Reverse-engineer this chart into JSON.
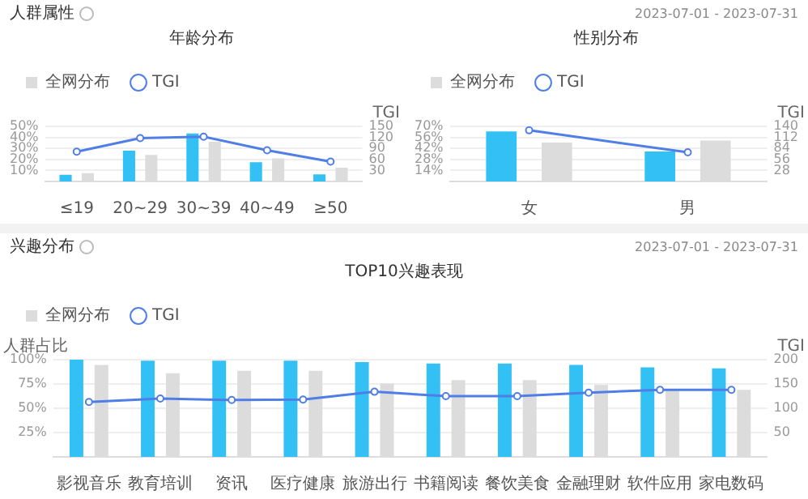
{
  "chart_data": [
    {
      "type": "bar",
      "title": "年龄分布",
      "annotations": [
        "人群属性"
      ],
      "categories": [
        "≤19",
        "20~29",
        "30~39",
        "40~49",
        "≥50"
      ],
      "y2label": "TGI",
      "series": [
        {
          "color": "#33c0f5",
          "values": [
            6,
            28,
            43.5,
            17.5,
            6.5
          ]
        },
        {
          "name": "全网分布",
          "color": "#dcdcdc",
          "values": [
            7.5,
            24,
            36,
            21,
            12.5
          ]
        },
        {
          "type": "line",
          "name": "TGI",
          "axis": "y2",
          "color": "#4f7fe6",
          "marker": "circle",
          "line_style": "solid",
          "values": [
            81,
            118,
            122,
            85,
            54
          ]
        }
      ],
      "ylim": [
        0,
        50
      ],
      "yticks": [
        {
          "value": 10,
          "label": "10%"
        },
        {
          "value": 20,
          "label": "20%"
        },
        {
          "value": 30,
          "label": "30%"
        },
        {
          "value": 40,
          "label": "40%"
        },
        {
          "value": 50,
          "label": "50%"
        }
      ],
      "y2lim": [
        0,
        150
      ],
      "y2ticks": [
        30,
        60,
        90,
        120,
        150
      ],
      "grid": "y",
      "legend": "top left"
    },
    {
      "type": "bar",
      "title": "性别分布",
      "annotations": [
        "2023-07-01 - 2023-07-31"
      ],
      "categories": [
        "女",
        "男"
      ],
      "y2label": "TGI",
      "series": [
        {
          "color": "#33c0f5",
          "values": [
            63.5,
            38
          ]
        },
        {
          "name": "全网分布",
          "color": "#dcdcdc",
          "values": [
            49.5,
            52
          ]
        },
        {
          "type": "line",
          "name": "TGI",
          "axis": "y2",
          "color": "#4f7fe6",
          "marker": "circle",
          "line_style": "solid",
          "values": [
            130,
            74
          ]
        }
      ],
      "ylim": [
        0,
        70
      ],
      "yticks": [
        {
          "value": 14,
          "label": "14%"
        },
        {
          "value": 28,
          "label": "28%"
        },
        {
          "value": 42,
          "label": "42%"
        },
        {
          "value": 56,
          "label": "56%"
        },
        {
          "value": 70,
          "label": "70%"
        }
      ],
      "y2lim": [
        0,
        140
      ],
      "y2ticks": [
        28,
        56,
        84,
        112,
        140
      ],
      "grid": "y",
      "legend": "top left"
    },
    {
      "type": "bar",
      "title": "TOP10兴趣表现",
      "annotations": [
        "兴趣分布",
        "2023-07-01 - 2023-07-31"
      ],
      "categories": [
        "影视音乐",
        "教育培训",
        "资讯",
        "医疗健康",
        "旅游出行",
        "书籍阅读",
        "餐饮美食",
        "金融理财",
        "软件应用",
        "家电数码"
      ],
      "ylabel": "人群占比",
      "y2label": "TGI",
      "series": [
        {
          "color": "#33c0f5",
          "values": [
            100,
            99,
            99,
            99,
            97.5,
            96,
            96,
            94.5,
            92,
            91
          ]
        },
        {
          "name": "全网分布",
          "color": "#dcdcdc",
          "values": [
            94.5,
            86,
            88.5,
            88.5,
            75.5,
            79,
            79,
            74,
            69,
            69
          ]
        },
        {
          "type": "line",
          "name": "TGI",
          "axis": "y2",
          "color": "#4f7fe6",
          "marker": "circle",
          "line_style": "solid",
          "values": [
            113,
            120,
            117,
            118,
            134,
            125,
            125,
            132,
            138,
            138
          ]
        }
      ],
      "ylim": [
        0,
        100
      ],
      "yticks": [
        {
          "value": 25,
          "label": "25%"
        },
        {
          "value": 50,
          "label": "50%"
        },
        {
          "value": 75,
          "label": "75%"
        },
        {
          "value": 100,
          "label": "100%"
        }
      ],
      "y2lim": [
        0,
        200
      ],
      "y2ticks": [
        50,
        100,
        150,
        200
      ],
      "grid": "y",
      "legend": "top left"
    }
  ]
}
